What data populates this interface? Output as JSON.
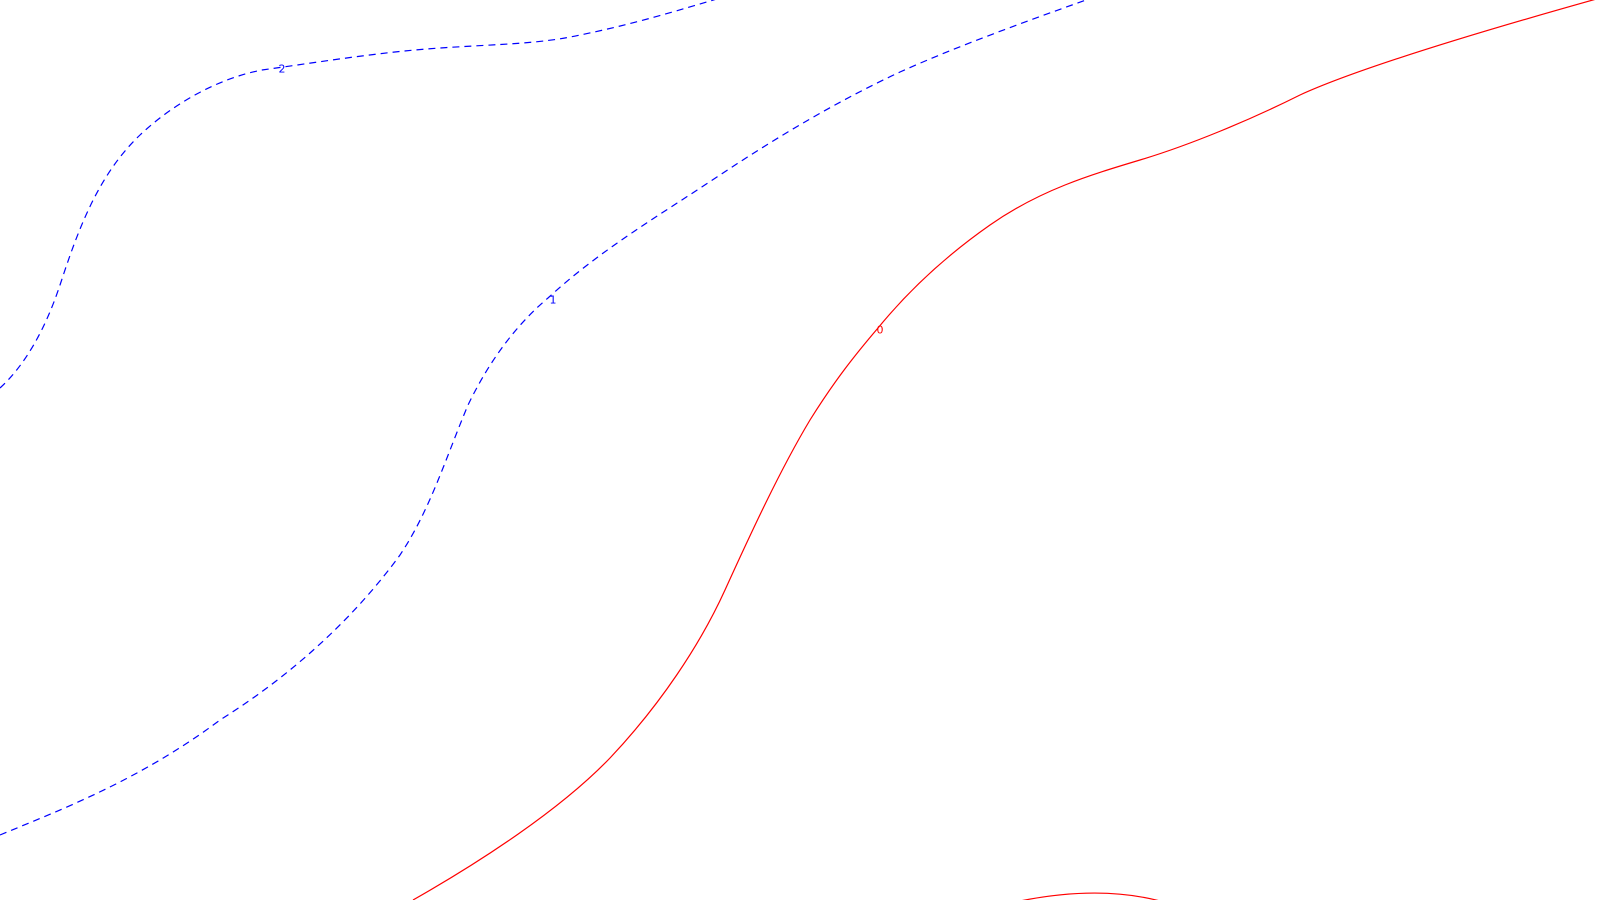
{
  "chart_data": {
    "type": "contour",
    "title": "",
    "xlabel": "",
    "ylabel": "",
    "levels": [
      {
        "value": 2,
        "label": "2",
        "style": "dashed",
        "color": "#0000ff"
      },
      {
        "value": 1,
        "label": "1",
        "style": "dashed",
        "color": "#0000ff"
      },
      {
        "value": 0,
        "label": "0",
        "style": "solid",
        "color": "#ff0000"
      },
      {
        "value": 0,
        "label": "",
        "style": "solid",
        "color": "#ff0000"
      }
    ]
  }
}
